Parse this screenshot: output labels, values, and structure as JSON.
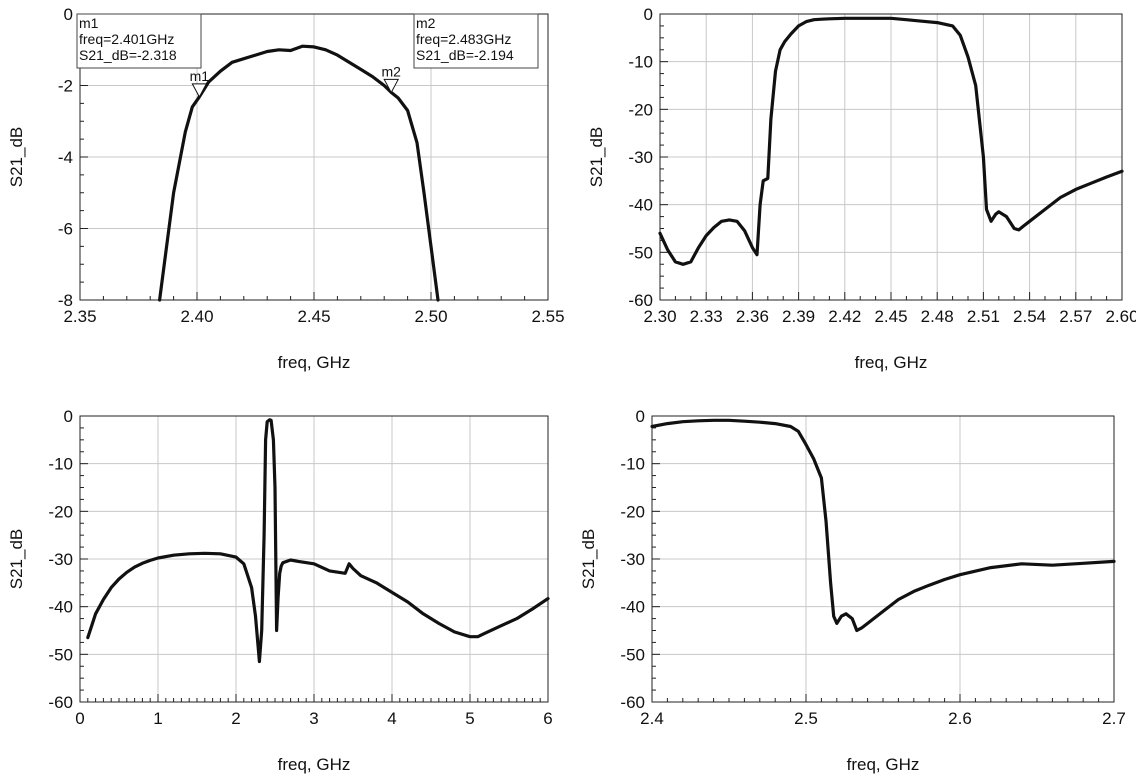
{
  "chart_data": [
    {
      "type": "line",
      "xlabel": "freq, GHz",
      "ylabel": "S21_dB",
      "xlim": [
        2.35,
        2.55
      ],
      "ylim": [
        -8,
        0
      ],
      "xticks": [
        2.35,
        2.4,
        2.45,
        2.5,
        2.55
      ],
      "xtick_labels": [
        "2.35",
        "2.40",
        "2.45",
        "2.50",
        "2.55"
      ],
      "yticks": [
        0,
        -2,
        -4,
        -6,
        -8
      ],
      "ytick_labels": [
        "0",
        "-2",
        "-4",
        "-6",
        "-8"
      ],
      "grid": true,
      "series": [
        {
          "x": [
            2.384,
            2.39,
            2.395,
            2.398,
            2.401,
            2.405,
            2.41,
            2.415,
            2.42,
            2.425,
            2.43,
            2.435,
            2.44,
            2.445,
            2.45,
            2.455,
            2.46,
            2.465,
            2.47,
            2.475,
            2.48,
            2.483,
            2.486,
            2.49,
            2.494,
            2.497,
            2.5,
            2.503
          ],
          "y": [
            -8.0,
            -5.0,
            -3.3,
            -2.6,
            -2.318,
            -1.9,
            -1.6,
            -1.35,
            -1.25,
            -1.15,
            -1.05,
            -1.0,
            -1.02,
            -0.9,
            -0.92,
            -1.0,
            -1.15,
            -1.35,
            -1.55,
            -1.75,
            -2.0,
            -2.194,
            -2.35,
            -2.7,
            -3.6,
            -5.0,
            -6.5,
            -8.0
          ]
        }
      ],
      "markers": [
        {
          "name": "m1",
          "freq": "freq=2.401GHz",
          "value": "S21_dB=-2.318",
          "x": 2.401,
          "y": -2.318
        },
        {
          "name": "m2",
          "freq": "freq=2.483GHz",
          "value": "S21_dB=-2.194",
          "x": 2.483,
          "y": -2.194
        }
      ]
    },
    {
      "type": "line",
      "xlabel": "freq, GHz",
      "ylabel": "S21_dB",
      "xlim": [
        2.3,
        2.6
      ],
      "ylim": [
        -60,
        0
      ],
      "xticks": [
        2.3,
        2.33,
        2.36,
        2.39,
        2.42,
        2.45,
        2.48,
        2.51,
        2.54,
        2.57,
        2.6
      ],
      "xtick_labels": [
        "2.30",
        "2.33",
        "2.36",
        "2.39",
        "2.42",
        "2.45",
        "2.48",
        "2.51",
        "2.54",
        "2.57",
        "2.60"
      ],
      "yticks": [
        0,
        -10,
        -20,
        -30,
        -40,
        -50,
        -60
      ],
      "ytick_labels": [
        "0",
        "-10",
        "-20",
        "-30",
        "-40",
        "-50",
        "-60"
      ],
      "grid": true,
      "series": [
        {
          "x": [
            2.3,
            2.305,
            2.31,
            2.315,
            2.32,
            2.325,
            2.33,
            2.335,
            2.34,
            2.345,
            2.35,
            2.355,
            2.36,
            2.363,
            2.365,
            2.367,
            2.37,
            2.372,
            2.375,
            2.378,
            2.381,
            2.385,
            2.39,
            2.395,
            2.4,
            2.405,
            2.41,
            2.42,
            2.43,
            2.44,
            2.45,
            2.46,
            2.47,
            2.48,
            2.49,
            2.495,
            2.5,
            2.505,
            2.51,
            2.512,
            2.515,
            2.518,
            2.52,
            2.525,
            2.53,
            2.533,
            2.536,
            2.54,
            2.55,
            2.56,
            2.57,
            2.58,
            2.59,
            2.6
          ],
          "y": [
            -46,
            -49.5,
            -52,
            -52.5,
            -52,
            -49,
            -46.5,
            -44.8,
            -43.5,
            -43.2,
            -43.5,
            -45.5,
            -49,
            -50.5,
            -40,
            -35,
            -34.5,
            -22,
            -12,
            -7.5,
            -5.8,
            -4.2,
            -2.5,
            -1.6,
            -1.2,
            -1.1,
            -1.0,
            -0.9,
            -0.9,
            -0.9,
            -0.9,
            -1.2,
            -1.5,
            -1.8,
            -2.5,
            -4.5,
            -9,
            -15,
            -30,
            -41,
            -43.5,
            -42,
            -41.5,
            -42.5,
            -45,
            -45.3,
            -44.5,
            -43.5,
            -41,
            -38.5,
            -36.8,
            -35.5,
            -34.2,
            -33
          ]
        }
      ]
    },
    {
      "type": "line",
      "xlabel": "freq, GHz",
      "ylabel": "S21_dB",
      "xlim": [
        0,
        6
      ],
      "ylim": [
        -60,
        0
      ],
      "xticks": [
        0,
        1,
        2,
        3,
        4,
        5,
        6
      ],
      "xtick_labels": [
        "0",
        "1",
        "2",
        "3",
        "4",
        "5",
        "6"
      ],
      "yticks": [
        0,
        -10,
        -20,
        -30,
        -40,
        -50,
        -60
      ],
      "ytick_labels": [
        "0",
        "-10",
        "-20",
        "-30",
        "-40",
        "-50",
        "-60"
      ],
      "grid": true,
      "series": [
        {
          "x": [
            0.1,
            0.15,
            0.2,
            0.3,
            0.4,
            0.5,
            0.6,
            0.7,
            0.8,
            0.9,
            1.0,
            1.2,
            1.4,
            1.6,
            1.8,
            2.0,
            2.1,
            2.2,
            2.25,
            2.3,
            2.33,
            2.36,
            2.38,
            2.4,
            2.43,
            2.45,
            2.48,
            2.5,
            2.52,
            2.54,
            2.56,
            2.58,
            2.6,
            2.7,
            2.8,
            3.0,
            3.2,
            3.4,
            3.45,
            3.5,
            3.6,
            3.8,
            4.0,
            4.2,
            4.4,
            4.6,
            4.8,
            5.0,
            5.1,
            5.2,
            5.4,
            5.6,
            5.8,
            6.0
          ],
          "y": [
            -46.5,
            -44,
            -41.5,
            -38.5,
            -36,
            -34.2,
            -32.8,
            -31.7,
            -30.9,
            -30.3,
            -29.8,
            -29.2,
            -28.9,
            -28.8,
            -28.9,
            -29.6,
            -31,
            -36,
            -42,
            -51.5,
            -45,
            -25,
            -5,
            -1.2,
            -0.8,
            -0.9,
            -5,
            -15,
            -45,
            -38,
            -33,
            -31.5,
            -30.8,
            -30.2,
            -30.5,
            -31,
            -32.5,
            -33,
            -31,
            -32,
            -33.5,
            -35,
            -37,
            -39,
            -41.5,
            -43.5,
            -45.3,
            -46.3,
            -46.3,
            -45.5,
            -44,
            -42.5,
            -40.5,
            -38.3
          ]
        }
      ]
    },
    {
      "type": "line",
      "xlabel": "freq, GHz",
      "ylabel": "S21_dB",
      "xlim": [
        2.4,
        2.7
      ],
      "ylim": [
        -60,
        0
      ],
      "xticks": [
        2.4,
        2.5,
        2.6,
        2.7
      ],
      "xtick_labels": [
        "2.4",
        "2.5",
        "2.6",
        "2.7"
      ],
      "yticks": [
        0,
        -10,
        -20,
        -30,
        -40,
        -50,
        -60
      ],
      "ytick_labels": [
        "0",
        "-10",
        "-20",
        "-30",
        "-40",
        "-50",
        "-60"
      ],
      "grid": true,
      "series": [
        {
          "x": [
            2.4,
            2.41,
            2.42,
            2.43,
            2.44,
            2.45,
            2.46,
            2.47,
            2.48,
            2.49,
            2.495,
            2.5,
            2.505,
            2.51,
            2.513,
            2.516,
            2.518,
            2.52,
            2.523,
            2.526,
            2.53,
            2.533,
            2.536,
            2.54,
            2.55,
            2.56,
            2.57,
            2.58,
            2.59,
            2.6,
            2.62,
            2.64,
            2.66,
            2.68,
            2.7
          ],
          "y": [
            -2.2,
            -1.6,
            -1.2,
            -1.0,
            -0.9,
            -0.9,
            -1.1,
            -1.3,
            -1.6,
            -2.2,
            -3.2,
            -6,
            -9,
            -13,
            -22,
            -35,
            -42,
            -43.5,
            -42,
            -41.5,
            -42.5,
            -45,
            -44.5,
            -43.5,
            -41,
            -38.5,
            -36.8,
            -35.5,
            -34.3,
            -33.3,
            -31.8,
            -31,
            -31.3,
            -30.9,
            -30.5
          ]
        }
      ]
    }
  ]
}
